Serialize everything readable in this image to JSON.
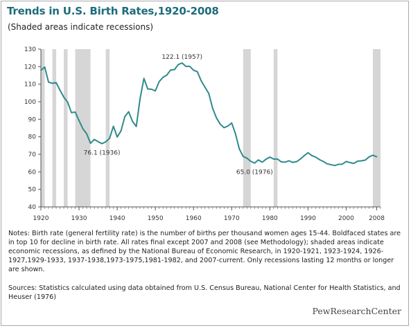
{
  "header": {
    "title": "Trends in U.S. Birth Rates,1920-2008",
    "subtitle": "(Shaded areas indicate recessions)"
  },
  "footer": {
    "notes": "Notes: Birth rate (general fertility rate) is the number of births per thousand women ages 15-44. Boldfaced states are in top 10 for decline in birth rate. All rates final except 2007 and 2008 (see Methodology); shaded areas indicate economic recessions, as defined by the National Bureau of Economic Research, in 1920-1921, 1923-1924, 1926-1927,1929-1933, 1937-1938,1973-1975,1981-1982, and 2007-current. Only recessions lasting 12 months or longer are shown.",
    "sources": "Sources: Statistics calculated using data obtained from U.S. Census Bureau, National Center for Health Statistics, and Heuser (1976)",
    "logo": "PewResearchCenter"
  },
  "colors": {
    "title": "#1e6c7b",
    "line": "#2f8a8c",
    "recession": "#d6d6d6",
    "axis": "#555555"
  },
  "chart_data": {
    "type": "line",
    "title": "Trends in U.S. Birth Rates,1920-2008",
    "subtitle": "(Shaded areas indicate recessions)",
    "xlabel": "",
    "ylabel": "",
    "xlim": [
      1920,
      2009
    ],
    "ylim": [
      40,
      130
    ],
    "y_ticks": [
      40,
      50,
      60,
      70,
      80,
      90,
      100,
      110,
      120,
      130
    ],
    "x_ticks": [
      1920,
      1930,
      1940,
      1950,
      1960,
      1970,
      1980,
      1990,
      2000,
      2008
    ],
    "grid": false,
    "series": [
      {
        "name": "",
        "x": [
          1920,
          1921,
          1922,
          1923,
          1924,
          1925,
          1926,
          1927,
          1928,
          1929,
          1930,
          1931,
          1932,
          1933,
          1934,
          1935,
          1936,
          1937,
          1938,
          1939,
          1940,
          1941,
          1942,
          1943,
          1944,
          1945,
          1946,
          1947,
          1948,
          1949,
          1950,
          1951,
          1952,
          1953,
          1954,
          1955,
          1956,
          1957,
          1958,
          1959,
          1960,
          1961,
          1962,
          1963,
          1964,
          1965,
          1966,
          1967,
          1968,
          1969,
          1970,
          1971,
          1972,
          1973,
          1974,
          1975,
          1976,
          1977,
          1978,
          1979,
          1980,
          1981,
          1982,
          1983,
          1984,
          1985,
          1986,
          1987,
          1988,
          1989,
          1990,
          1991,
          1992,
          1993,
          1994,
          1995,
          1996,
          1997,
          1998,
          1999,
          2000,
          2001,
          2002,
          2003,
          2004,
          2005,
          2006,
          2007,
          2008
        ],
        "values": [
          117.9,
          119.8,
          111.2,
          110.5,
          110.9,
          106.6,
          102.6,
          99.8,
          93.8,
          94.1,
          89.2,
          84.6,
          81.7,
          76.3,
          78.5,
          77.2,
          76.1,
          77.1,
          79.1,
          86.0,
          79.9,
          83.4,
          91.5,
          94.3,
          88.8,
          85.9,
          101.9,
          113.3,
          107.3,
          107.1,
          106.2,
          111.5,
          113.9,
          115.2,
          118.1,
          118.3,
          121.2,
          122.1,
          120.2,
          120.2,
          118.0,
          117.1,
          112.0,
          108.3,
          104.7,
          96.3,
          90.8,
          87.2,
          85.2,
          86.1,
          87.9,
          81.6,
          73.1,
          68.8,
          67.8,
          66.0,
          65.0,
          66.8,
          65.5,
          67.2,
          68.4,
          67.3,
          67.3,
          65.7,
          65.5,
          66.3,
          65.4,
          65.8,
          67.3,
          69.2,
          70.9,
          69.3,
          68.4,
          67.0,
          65.9,
          64.6,
          64.1,
          63.6,
          64.3,
          64.4,
          65.9,
          65.3,
          64.8,
          66.1,
          66.3,
          66.7,
          68.5,
          69.5,
          68.6
        ]
      }
    ],
    "recessions": [
      [
        1920,
        1921
      ],
      [
        1923,
        1924
      ],
      [
        1926,
        1927
      ],
      [
        1929,
        1933
      ],
      [
        1937,
        1938
      ],
      [
        1973,
        1975
      ],
      [
        1981,
        1982
      ],
      [
        2007,
        2009
      ]
    ],
    "annotations": [
      {
        "x": 1957,
        "y": 122.1,
        "label": "122.1 (1957)",
        "position": "above"
      },
      {
        "x": 1936,
        "y": 76.1,
        "label": "76.1 (1936)",
        "position": "below"
      },
      {
        "x": 1976,
        "y": 65.0,
        "label": "65.0 (1976)",
        "position": "below"
      }
    ]
  }
}
